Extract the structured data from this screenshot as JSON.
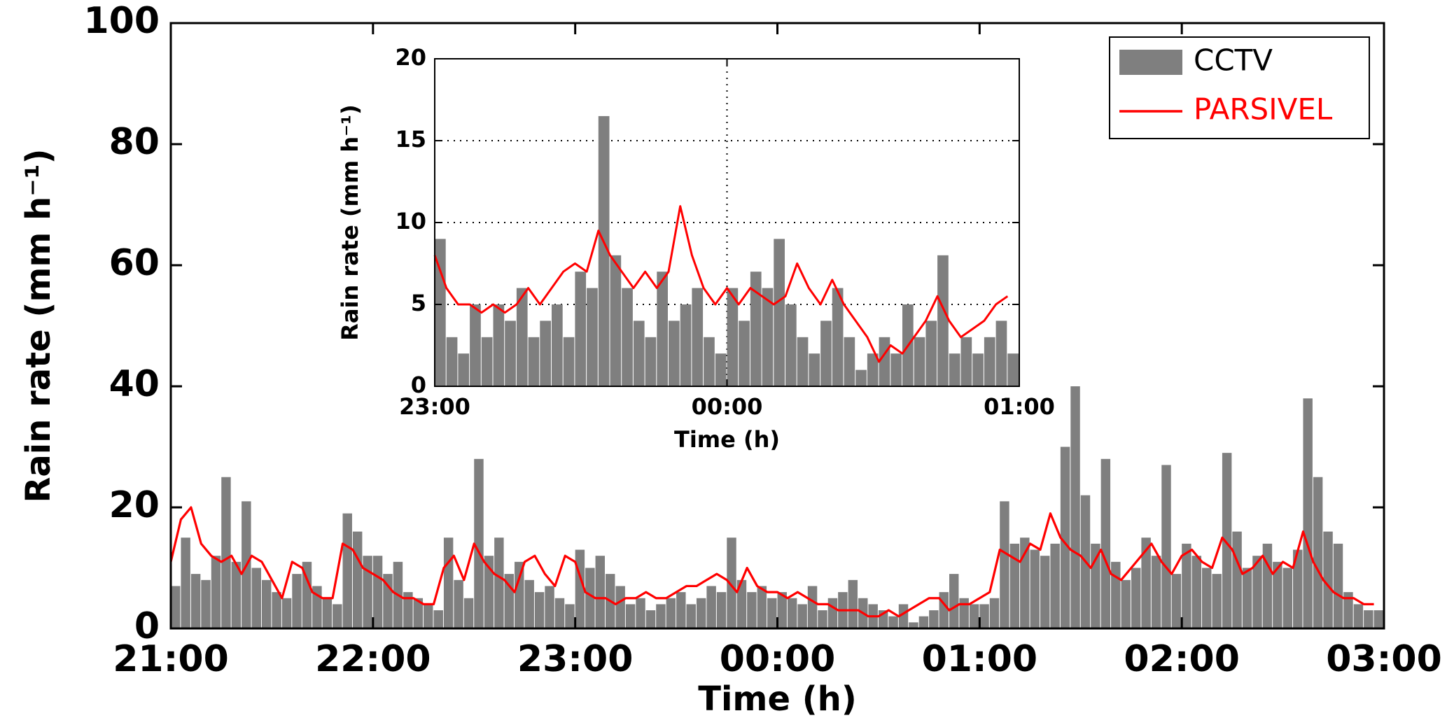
{
  "chart_data": [
    {
      "type": "combo",
      "x_label": "Time (h)",
      "y_label": "Rain rate (mm h⁻¹)",
      "xlim": [
        21,
        27
      ],
      "ylim": [
        0,
        100
      ],
      "xticks": [
        {
          "value": 21,
          "label": "21:00"
        },
        {
          "value": 22,
          "label": "22:00"
        },
        {
          "value": 23,
          "label": "23:00"
        },
        {
          "value": 24,
          "label": "00:00"
        },
        {
          "value": 25,
          "label": "01:00"
        },
        {
          "value": 26,
          "label": "02:00"
        },
        {
          "value": 27,
          "label": "03:00"
        }
      ],
      "yticks": [
        0,
        20,
        40,
        60,
        80,
        100
      ],
      "grid": false,
      "legend": "upper right",
      "x": [
        21,
        21.05,
        21.1,
        21.15,
        21.2,
        21.25,
        21.3,
        21.35,
        21.4,
        21.45,
        21.5,
        21.55,
        21.6,
        21.65,
        21.7,
        21.75,
        21.8,
        21.85,
        21.9,
        21.95,
        22,
        22.05,
        22.1,
        22.15,
        22.2,
        22.25,
        22.3,
        22.35,
        22.4,
        22.45,
        22.5,
        22.55,
        22.6,
        22.65,
        22.7,
        22.75,
        22.8,
        22.85,
        22.9,
        22.95,
        23,
        23.05,
        23.1,
        23.15,
        23.2,
        23.25,
        23.3,
        23.35,
        23.4,
        23.45,
        23.5,
        23.55,
        23.6,
        23.65,
        23.7,
        23.75,
        23.8,
        23.85,
        23.9,
        23.95,
        24,
        24.05,
        24.1,
        24.15,
        24.2,
        24.25,
        24.3,
        24.35,
        24.4,
        24.45,
        24.5,
        24.55,
        24.6,
        24.65,
        24.7,
        24.75,
        24.8,
        24.85,
        24.9,
        24.95,
        25,
        25.05,
        25.1,
        25.15,
        25.2,
        25.25,
        25.3,
        25.35,
        25.4,
        25.45,
        25.5,
        25.55,
        25.6,
        25.65,
        25.7,
        25.75,
        25.8,
        25.85,
        25.9,
        25.95,
        26,
        26.05,
        26.1,
        26.15,
        26.2,
        26.25,
        26.3,
        26.35,
        26.4,
        26.45,
        26.5,
        26.55,
        26.6,
        26.65,
        26.7,
        26.75,
        26.8,
        26.85,
        26.9,
        26.95
      ],
      "series": [
        {
          "name": "CCTV",
          "type": "bar",
          "color": "#7f7f7f",
          "values": [
            7,
            15,
            9,
            8,
            12,
            25,
            11,
            21,
            10,
            8,
            6,
            5,
            9,
            11,
            7,
            5,
            4,
            19,
            16,
            12,
            12,
            9,
            11,
            6,
            5,
            4,
            3,
            15,
            8,
            5,
            28,
            12,
            15,
            9,
            11,
            8,
            6,
            7,
            5,
            4,
            13,
            10,
            12,
            9,
            7,
            4,
            5,
            3,
            4,
            5,
            6,
            4,
            5,
            7,
            6,
            15,
            8,
            6,
            7,
            5,
            6,
            5,
            4,
            7,
            3,
            5,
            6,
            8,
            5,
            4,
            3,
            2,
            4,
            1,
            2,
            3,
            6,
            9,
            5,
            4,
            4,
            5,
            21,
            14,
            15,
            13,
            12,
            14,
            30,
            40,
            22,
            14,
            28,
            11,
            8,
            10,
            15,
            12,
            27,
            9,
            14,
            12,
            10,
            9,
            29,
            16,
            10,
            12,
            14,
            11,
            10,
            13,
            38,
            25,
            16,
            14,
            6,
            4,
            3,
            3
          ]
        },
        {
          "name": "PARSIVEL",
          "type": "line",
          "color": "#ff0000",
          "values": [
            11,
            18,
            20,
            14,
            12,
            11,
            12,
            9,
            12,
            11,
            8,
            5,
            11,
            10,
            6,
            5,
            5,
            14,
            13,
            10,
            9,
            8,
            6,
            5,
            5,
            4,
            4,
            10,
            12,
            8,
            14,
            11,
            9,
            8,
            6,
            11,
            12,
            9,
            7,
            12,
            11,
            6,
            5,
            5,
            4,
            5,
            5,
            6,
            5,
            5,
            6,
            7,
            7,
            8,
            9,
            8,
            6,
            10,
            7,
            6,
            6,
            5,
            6,
            5,
            4,
            4,
            3,
            3,
            3,
            2,
            2,
            3,
            2,
            3,
            4,
            5,
            5,
            3,
            4,
            4,
            5,
            6,
            13,
            12,
            11,
            14,
            13,
            19,
            15,
            13,
            12,
            10,
            13,
            9,
            8,
            10,
            12,
            14,
            11,
            9,
            12,
            13,
            11,
            10,
            15,
            13,
            9,
            10,
            12,
            9,
            11,
            10,
            16,
            11,
            8,
            6,
            5,
            5,
            4,
            4
          ]
        }
      ]
    },
    {
      "type": "combo",
      "x_label": "Time (h)",
      "y_label": "Rain rate (mm h⁻¹)",
      "xlim": [
        23,
        25
      ],
      "ylim": [
        0,
        20
      ],
      "xticks": [
        {
          "value": 23,
          "label": "23:00"
        },
        {
          "value": 24,
          "label": "00:00"
        },
        {
          "value": 25,
          "label": "01:00"
        }
      ],
      "yticks": [
        0,
        5,
        10,
        15,
        20
      ],
      "grid": true,
      "x": [
        23,
        23.04,
        23.08,
        23.12,
        23.16,
        23.2,
        23.24,
        23.28,
        23.32,
        23.36,
        23.4,
        23.44,
        23.48,
        23.52,
        23.56,
        23.6,
        23.64,
        23.68,
        23.72,
        23.76,
        23.8,
        23.84,
        23.88,
        23.92,
        23.96,
        24,
        24.04,
        24.08,
        24.12,
        24.16,
        24.2,
        24.24,
        24.28,
        24.32,
        24.36,
        24.4,
        24.44,
        24.48,
        24.52,
        24.56,
        24.6,
        24.64,
        24.68,
        24.72,
        24.76,
        24.8,
        24.84,
        24.88,
        24.92,
        24.96
      ],
      "series": [
        {
          "name": "CCTV",
          "type": "bar",
          "color": "#7f7f7f",
          "values": [
            9,
            3,
            2,
            5,
            3,
            5,
            4,
            6,
            3,
            4,
            5,
            3,
            7,
            6,
            16.5,
            8,
            6,
            4,
            3,
            7,
            4,
            5,
            6,
            3,
            2,
            6,
            4,
            7,
            6,
            9,
            5,
            3,
            2,
            4,
            6,
            3,
            1,
            2,
            3,
            2,
            5,
            3,
            4,
            8,
            2,
            3,
            2,
            3,
            4,
            2
          ]
        },
        {
          "name": "PARSIVEL",
          "type": "line",
          "color": "#ff0000",
          "values": [
            8,
            6,
            5,
            5,
            4.5,
            5,
            4.5,
            5,
            6,
            5,
            6,
            7,
            7.5,
            7,
            9.5,
            8,
            7,
            6,
            7,
            6,
            7,
            11,
            8,
            6,
            5,
            6,
            5,
            6,
            5.5,
            5,
            5.5,
            7.5,
            6,
            5,
            6.5,
            5,
            4,
            3,
            1.5,
            2.5,
            2,
            3,
            4,
            5.5,
            4,
            3,
            3.5,
            4,
            5,
            5.5
          ]
        }
      ]
    }
  ]
}
